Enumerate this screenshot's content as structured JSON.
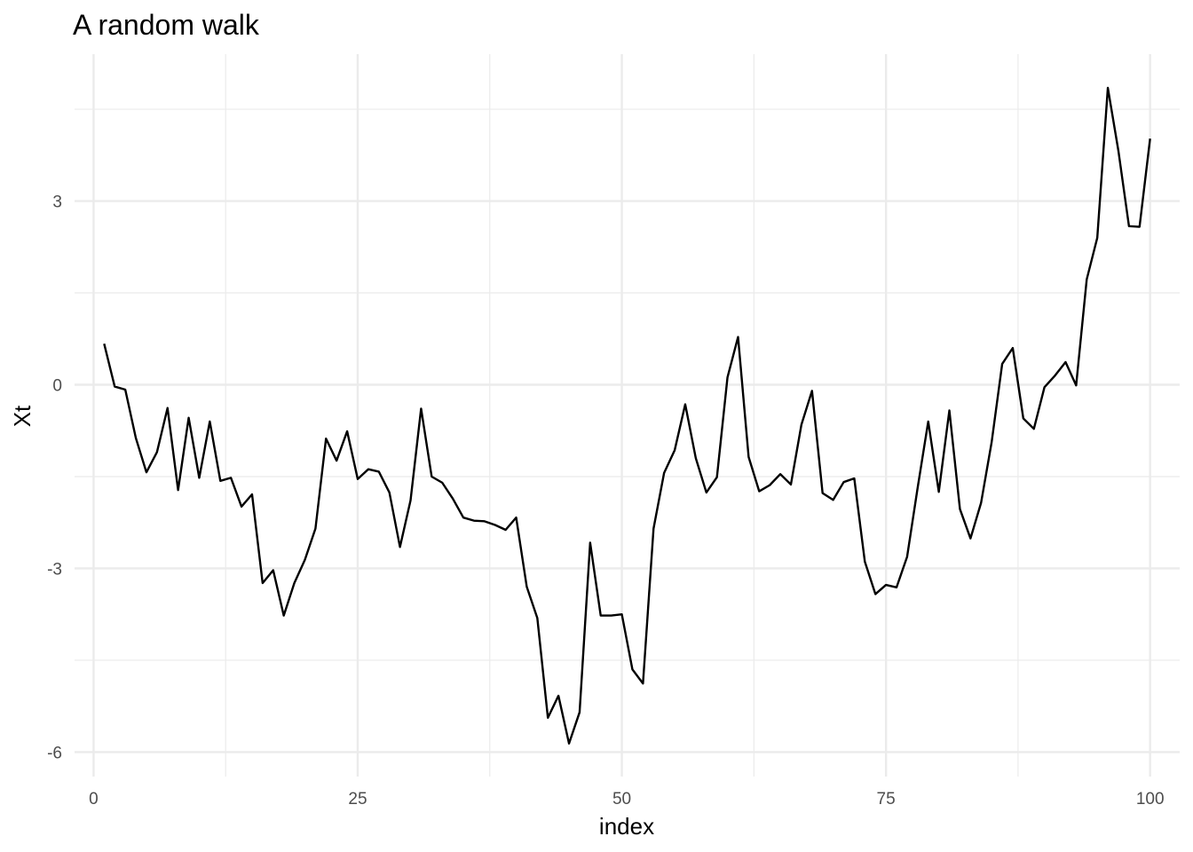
{
  "chart_data": {
    "type": "line",
    "title": "A random walk",
    "xlabel": "index",
    "ylabel": "Xt",
    "xlim": [
      -1.8,
      102.8
    ],
    "ylim": [
      -6.4,
      5.4
    ],
    "x_ticks": [
      0,
      25,
      50,
      75,
      100
    ],
    "x_tick_labels": [
      "0",
      "25",
      "50",
      "75",
      "100"
    ],
    "y_ticks": [
      -6,
      -3,
      0,
      3
    ],
    "y_tick_labels": [
      "-6",
      "-3",
      "0",
      "3"
    ],
    "grid": true,
    "colors": {
      "line": "#000000",
      "grid": "#ebebeb",
      "background": "#ffffff"
    },
    "series": [
      {
        "x": [
          1,
          2,
          3,
          4,
          5,
          6,
          7,
          8,
          9,
          10,
          11,
          12,
          13,
          14,
          15,
          16,
          17,
          18,
          19,
          20,
          21,
          22,
          23,
          24,
          25,
          26,
          27,
          28,
          29,
          30,
          31,
          32,
          33,
          34,
          35,
          36,
          37,
          38,
          39,
          40,
          41,
          42,
          43,
          44,
          45,
          46,
          47,
          48,
          49,
          50,
          51,
          52,
          53,
          54,
          55,
          56,
          57,
          58,
          59,
          60,
          61,
          62,
          63,
          64,
          65,
          66,
          67,
          68,
          69,
          70,
          71,
          72,
          73,
          74,
          75,
          76,
          77,
          78,
          79,
          80,
          81,
          82,
          83,
          84,
          85,
          86,
          87,
          88,
          89,
          90,
          91,
          92,
          93,
          94,
          95,
          96,
          97,
          98,
          99,
          100
        ],
        "values": [
          0.67,
          -0.03,
          -0.08,
          -0.87,
          -1.43,
          -1.1,
          -0.38,
          -1.72,
          -0.54,
          -1.52,
          -0.6,
          -1.57,
          -1.52,
          -1.99,
          -1.79,
          -3.24,
          -3.03,
          -3.77,
          -3.24,
          -2.86,
          -2.35,
          -0.88,
          -1.24,
          -0.76,
          -1.54,
          -1.38,
          -1.42,
          -1.76,
          -2.65,
          -1.89,
          -0.39,
          -1.5,
          -1.6,
          -1.86,
          -2.17,
          -2.22,
          -2.23,
          -2.29,
          -2.37,
          -2.17,
          -3.3,
          -3.81,
          -5.44,
          -5.08,
          -5.86,
          -5.35,
          -2.58,
          -3.77,
          -3.77,
          -3.75,
          -4.65,
          -4.88,
          -2.35,
          -1.44,
          -1.07,
          -0.32,
          -1.2,
          -1.76,
          -1.51,
          0.12,
          0.78,
          -1.18,
          -1.74,
          -1.64,
          -1.46,
          -1.63,
          -0.65,
          -0.1,
          -1.77,
          -1.88,
          -1.59,
          -1.53,
          -2.89,
          -3.42,
          -3.27,
          -3.31,
          -2.81,
          -1.68,
          -0.6,
          -1.75,
          -0.42,
          -2.03,
          -2.51,
          -1.93,
          -0.94,
          0.34,
          0.6,
          -0.55,
          -0.72,
          -0.04,
          0.15,
          0.37,
          -0.01,
          1.72,
          2.4,
          4.85,
          3.82,
          2.59,
          2.58,
          4.02
        ]
      }
    ]
  }
}
